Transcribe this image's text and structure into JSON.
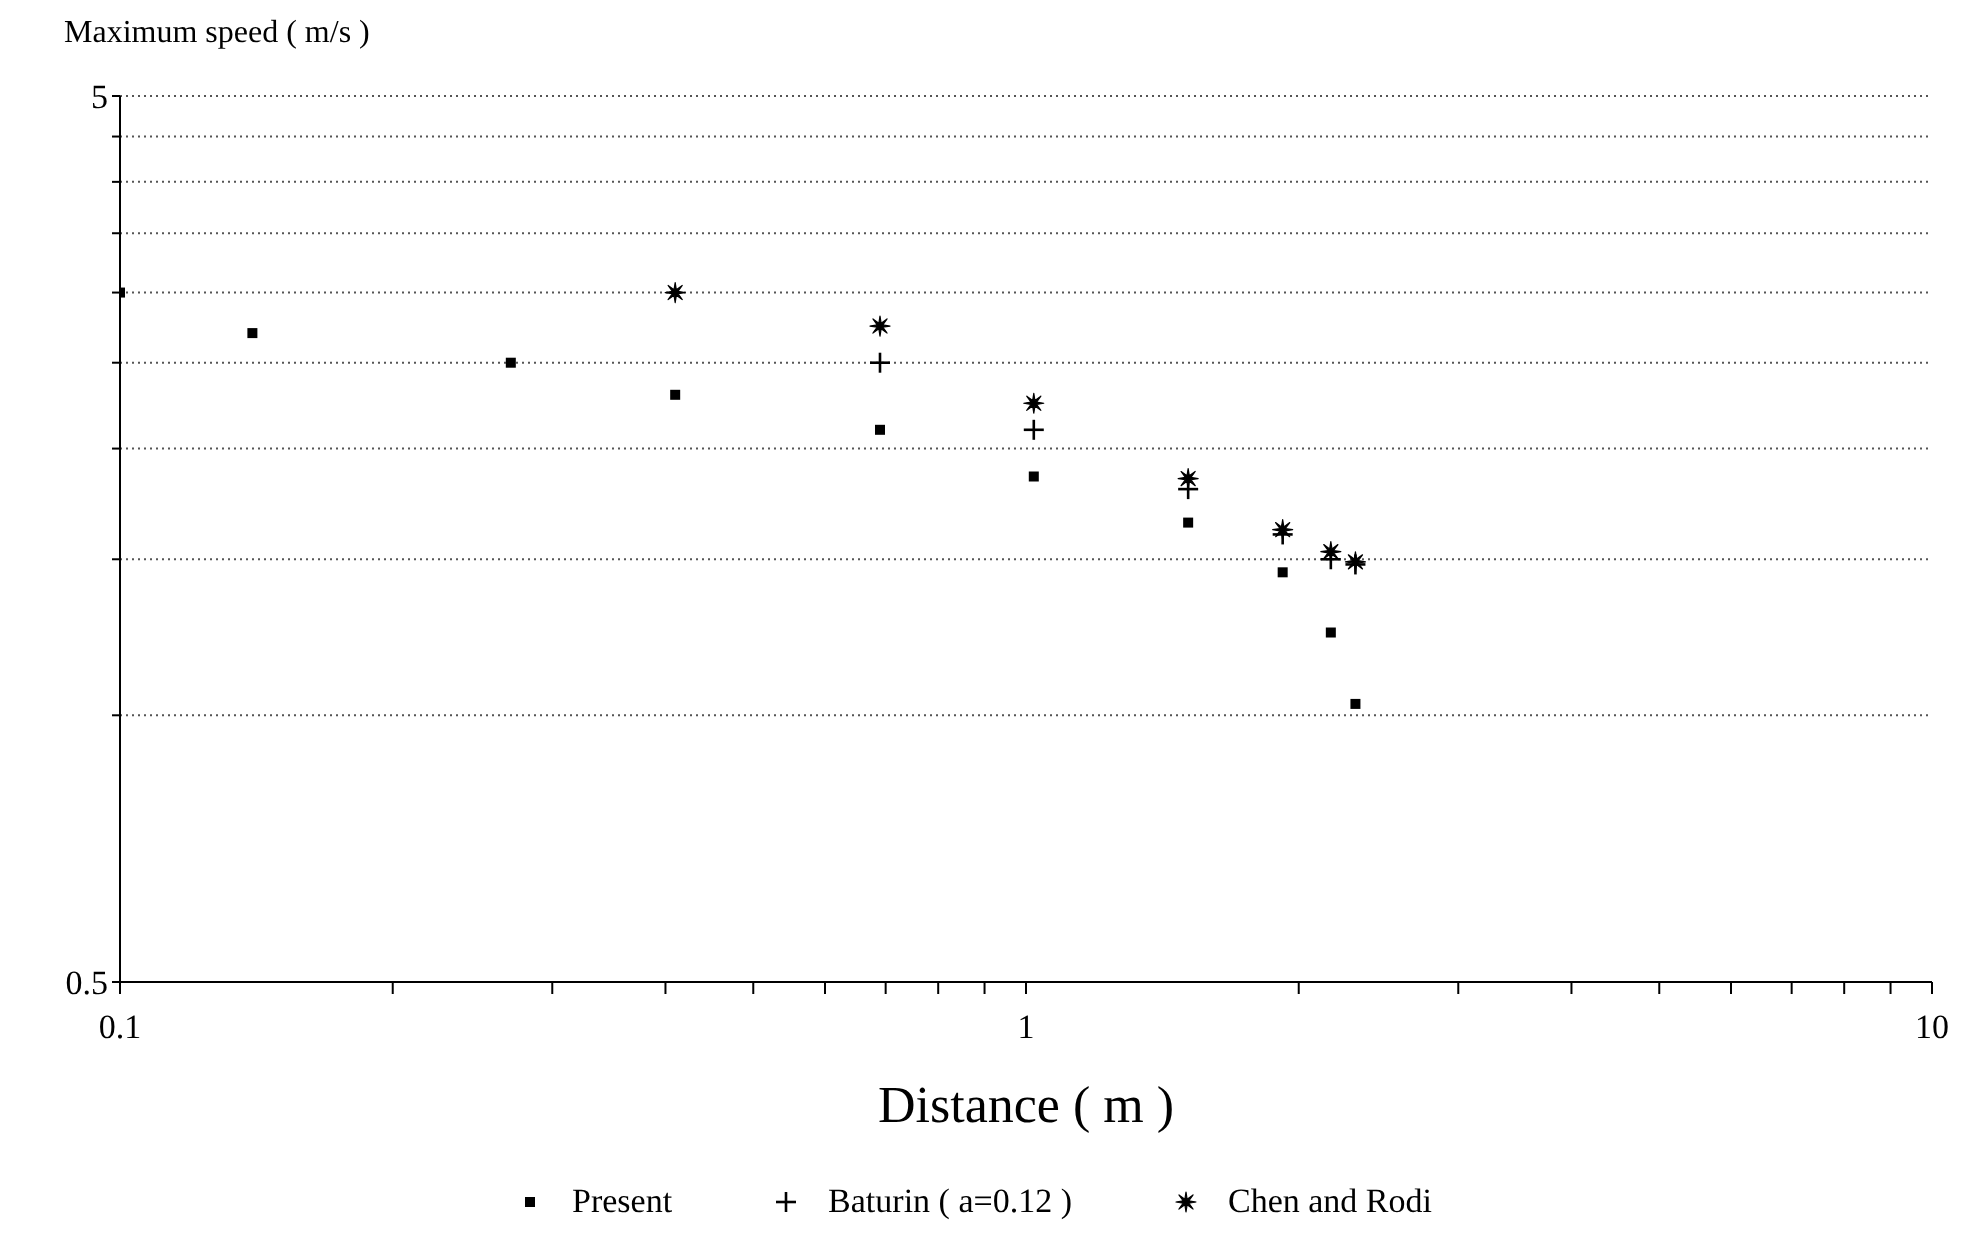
{
  "chart_data": {
    "type": "scatter",
    "ylabel": "Maximum speed ( m/s )",
    "xlabel": "Distance ( m )",
    "log": "xy",
    "grid": "y",
    "legend": "bottom",
    "xlim": [
      0.1,
      10
    ],
    "ylim": [
      0.5,
      5
    ],
    "xticks": [
      0.1,
      {
        "value": 0.2,
        "label": null
      },
      {
        "value": 0.3,
        "label": null
      },
      {
        "value": 0.4,
        "label": null
      },
      {
        "value": 0.5,
        "label": null
      },
      {
        "value": 0.6,
        "label": null
      },
      {
        "value": 0.7,
        "label": null
      },
      {
        "value": 0.8,
        "label": null
      },
      {
        "value": 0.9,
        "label": null
      },
      1,
      {
        "value": 2,
        "label": null
      },
      {
        "value": 3,
        "label": null
      },
      {
        "value": 4,
        "label": null
      },
      {
        "value": 5,
        "label": null
      },
      {
        "value": 6,
        "label": null
      },
      {
        "value": 7,
        "label": null
      },
      {
        "value": 8,
        "label": null
      },
      {
        "value": 9,
        "label": null
      },
      10
    ],
    "yticks": [
      0.5,
      {
        "value": 1,
        "label": null
      },
      {
        "value": 1.5,
        "label": null
      },
      {
        "value": 2,
        "label": null
      },
      {
        "value": 2.5,
        "label": null
      },
      {
        "value": 3,
        "label": null
      },
      {
        "value": 3.5,
        "label": null
      },
      {
        "value": 4,
        "label": null
      },
      {
        "value": 4.5,
        "label": null
      },
      5
    ],
    "series": [
      {
        "name": "Present",
        "color": "#000000",
        "marker": "square",
        "x": [
          0.1,
          0.14,
          0.27,
          0.41,
          0.69,
          1.02,
          1.51,
          1.92,
          2.17,
          2.31
        ],
        "values": [
          3.0,
          2.7,
          2.5,
          2.3,
          2.1,
          1.86,
          1.65,
          1.45,
          1.24,
          1.03
        ]
      },
      {
        "name": "Baturin ( a=0.12 )",
        "color": "#000000",
        "marker": "cross",
        "x": [
          0.69,
          1.02,
          1.51,
          1.92,
          2.17,
          2.31
        ],
        "values": [
          2.5,
          2.1,
          1.8,
          1.6,
          1.5,
          1.48
        ]
      },
      {
        "name": "Chen and Rodi",
        "color": "#000000",
        "marker": "star",
        "x": [
          0.41,
          0.69,
          1.02,
          1.51,
          1.92,
          2.17,
          2.31
        ],
        "values": [
          3.0,
          2.75,
          2.25,
          1.85,
          1.62,
          1.53,
          1.49
        ]
      }
    ]
  }
}
